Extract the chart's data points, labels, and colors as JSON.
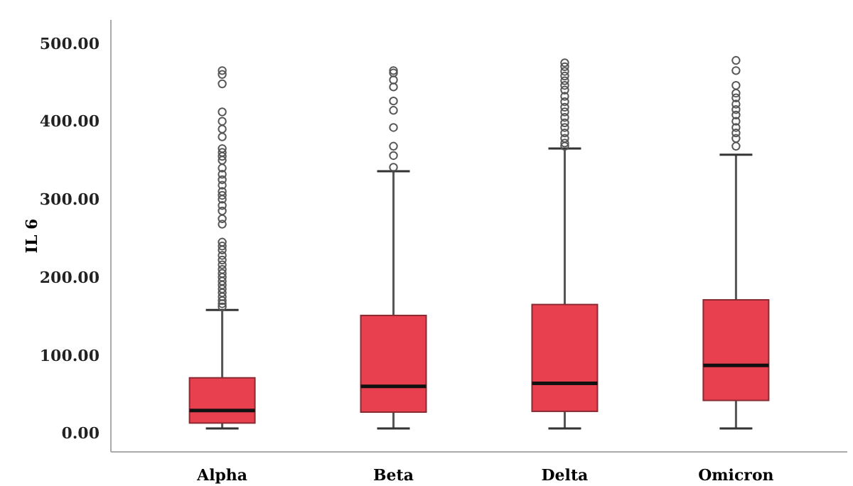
{
  "chart_data": {
    "type": "box",
    "ylabel": "IL 6",
    "categories": [
      "Alpha",
      "Beta",
      "Delta",
      "Omicron"
    ],
    "color": "#e8404f",
    "ylim": [
      -24,
      530
    ],
    "yticks": [
      {
        "value": 0,
        "label": "0.00"
      },
      {
        "value": 100,
        "label": "100.00"
      },
      {
        "value": 200,
        "label": "200.00"
      },
      {
        "value": 300,
        "label": "300.00"
      },
      {
        "value": 400,
        "label": "400.00"
      },
      {
        "value": 500,
        "label": "500.00"
      }
    ],
    "boxes": [
      {
        "low": 6,
        "q1": 13,
        "median": 29,
        "q3": 71,
        "high": 158,
        "outliers": [
          162,
          166,
          170,
          175,
          180,
          185,
          190,
          195,
          200,
          205,
          210,
          216,
          222,
          228,
          235,
          240,
          245,
          268,
          275,
          285,
          292,
          300,
          305,
          310,
          318,
          325,
          332,
          340,
          350,
          355,
          360,
          365,
          380,
          390,
          400,
          412,
          448,
          460,
          465
        ]
      },
      {
        "low": 6,
        "q1": 27,
        "median": 60,
        "q3": 151,
        "high": 336,
        "outliers": [
          341,
          356,
          368,
          392,
          414,
          426,
          444,
          453,
          462,
          465
        ]
      },
      {
        "low": 6,
        "q1": 28,
        "median": 64,
        "q3": 165,
        "high": 365,
        "outliers": [
          368,
          372,
          378,
          385,
          392,
          398,
          405,
          412,
          418,
          425,
          432,
          440,
          446,
          452,
          458,
          464,
          470,
          475
        ]
      },
      {
        "low": 6,
        "q1": 42,
        "median": 87,
        "q3": 171,
        "high": 357,
        "outliers": [
          368,
          378,
          385,
          392,
          400,
          408,
          415,
          422,
          430,
          436,
          446,
          465,
          478
        ]
      }
    ]
  }
}
